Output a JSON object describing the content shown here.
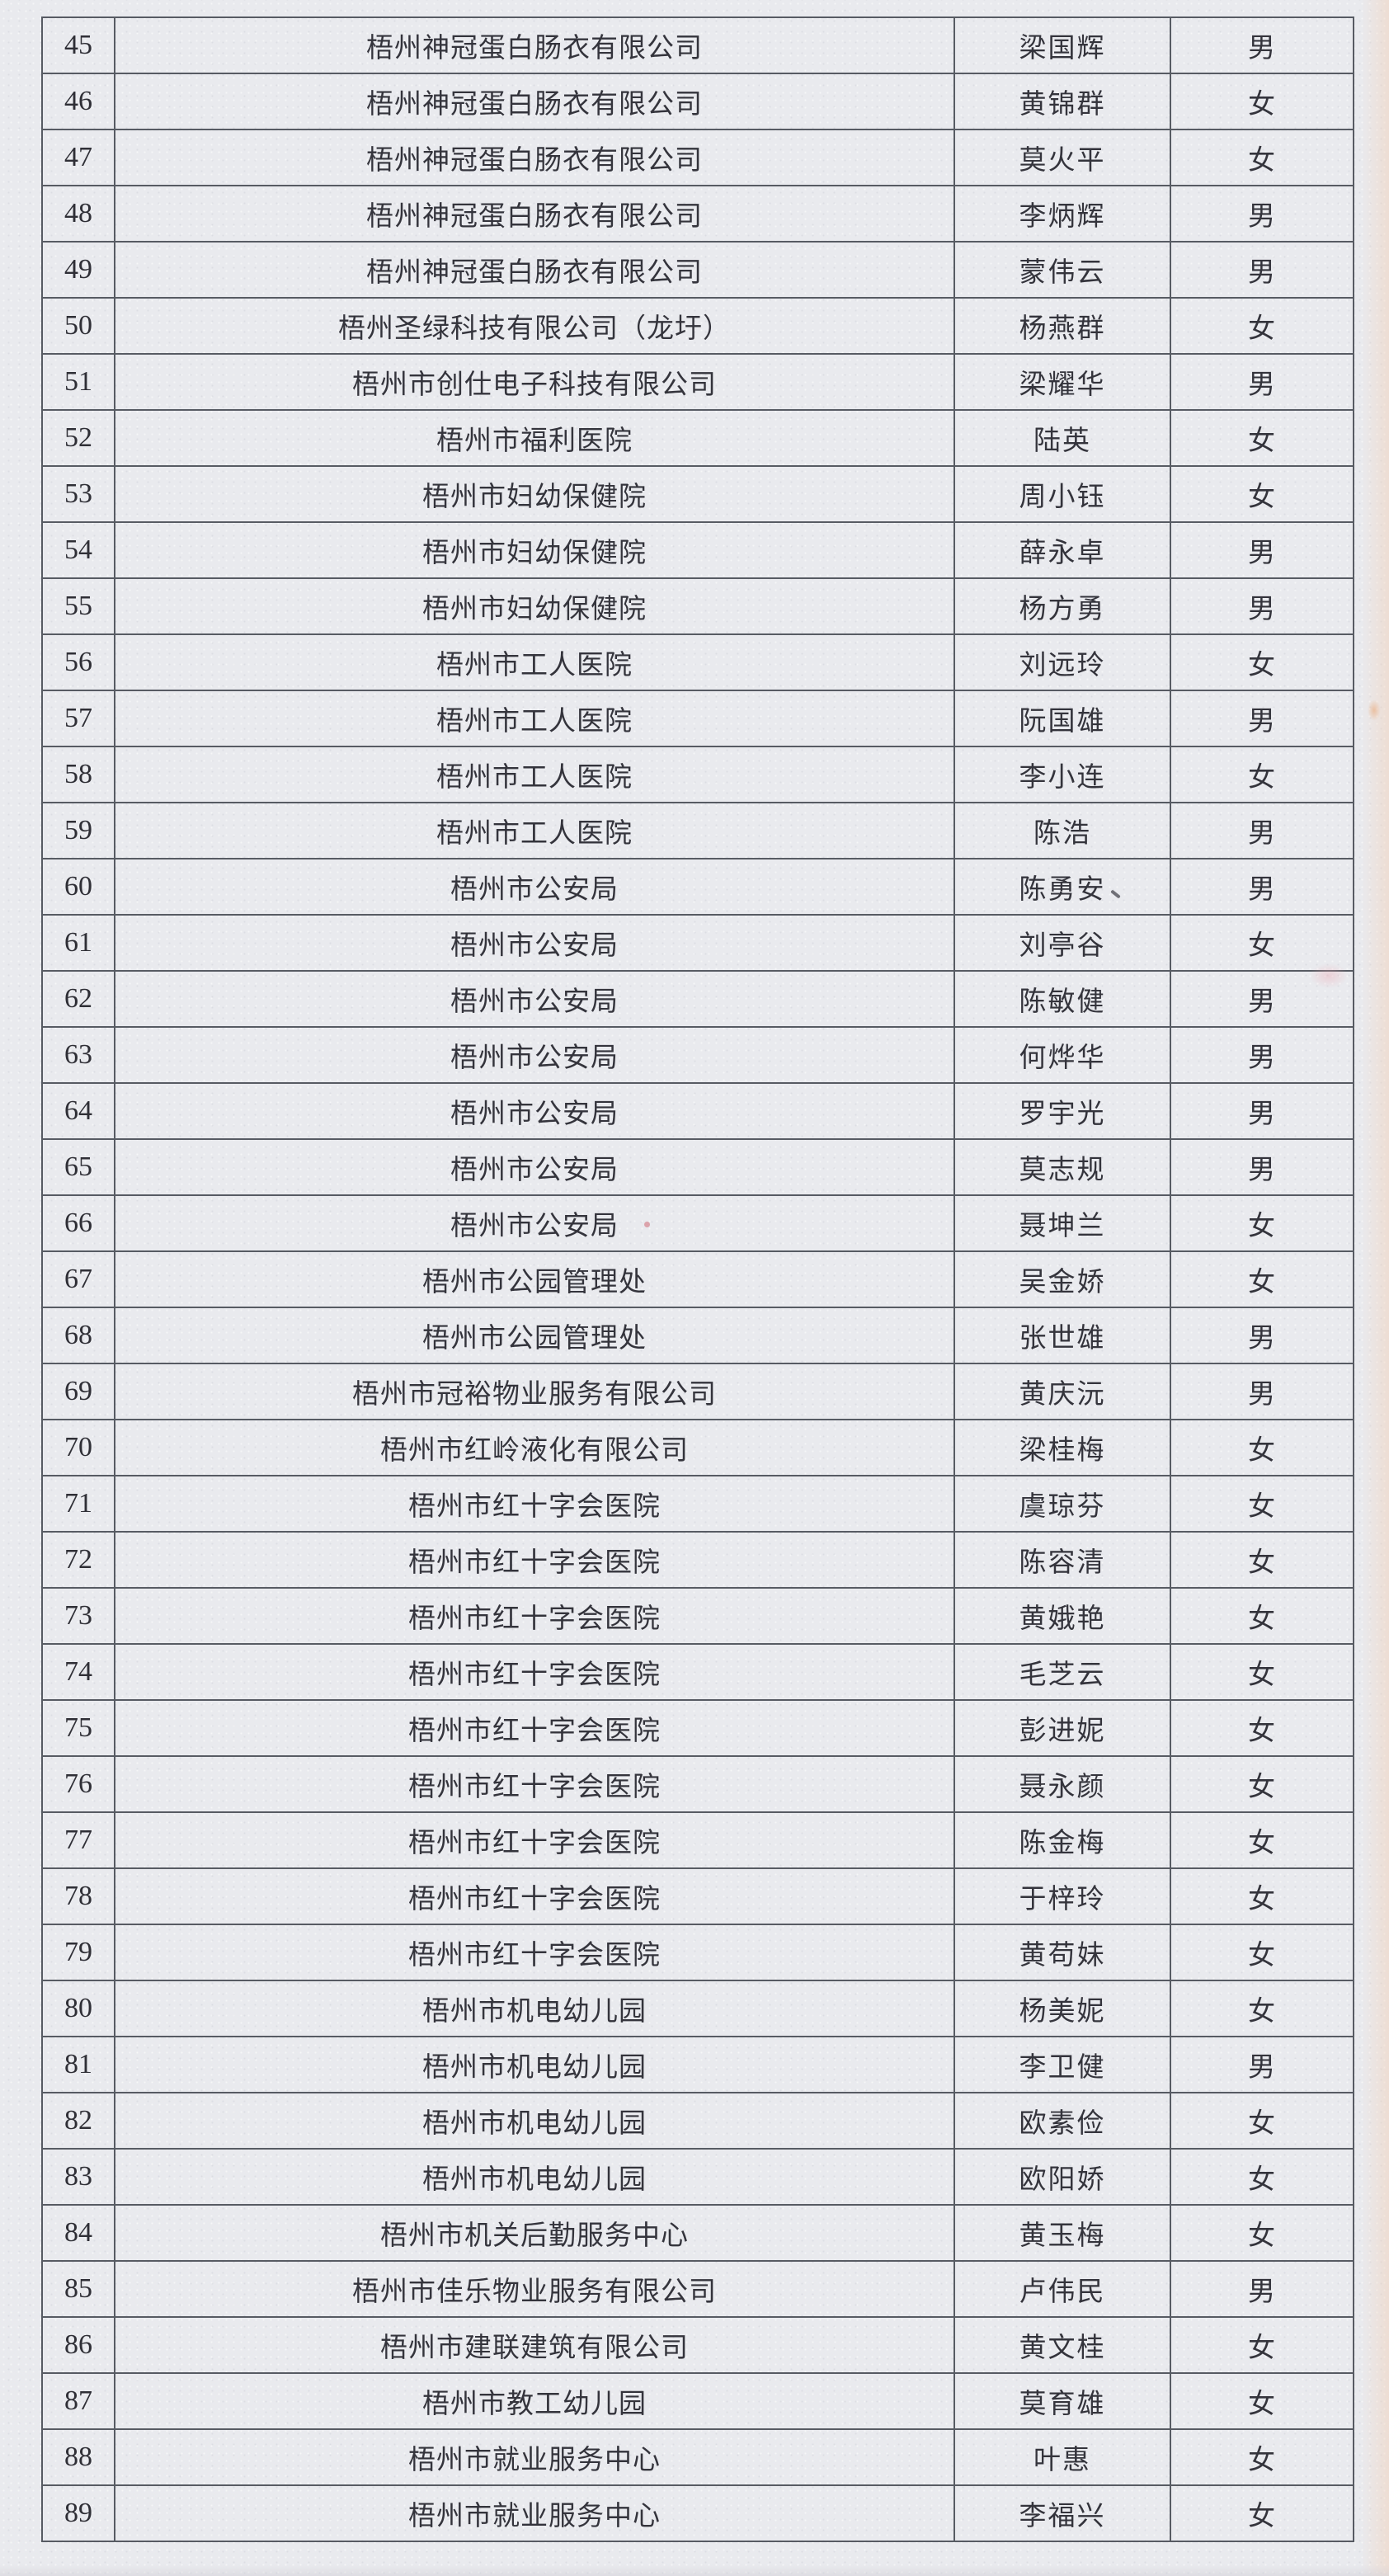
{
  "colors": {
    "paper": "#e9eaee",
    "line": "#575b63",
    "ink": "#34343c",
    "edge_tint": "#f3cdb2"
  },
  "table": {
    "rows": [
      {
        "no": "45",
        "org": "梧州神冠蛋白肠衣有限公司",
        "name": "梁国辉",
        "gender": "男"
      },
      {
        "no": "46",
        "org": "梧州神冠蛋白肠衣有限公司",
        "name": "黄锦群",
        "gender": "女"
      },
      {
        "no": "47",
        "org": "梧州神冠蛋白肠衣有限公司",
        "name": "莫火平",
        "gender": "女"
      },
      {
        "no": "48",
        "org": "梧州神冠蛋白肠衣有限公司",
        "name": "李炳辉",
        "gender": "男"
      },
      {
        "no": "49",
        "org": "梧州神冠蛋白肠衣有限公司",
        "name": "蒙伟云",
        "gender": "男"
      },
      {
        "no": "50",
        "org": "梧州圣绿科技有限公司（龙圩）",
        "name": "杨燕群",
        "gender": "女"
      },
      {
        "no": "51",
        "org": "梧州市创仕电子科技有限公司",
        "name": "梁耀华",
        "gender": "男"
      },
      {
        "no": "52",
        "org": "梧州市福利医院",
        "name": "陆英",
        "gender": "女"
      },
      {
        "no": "53",
        "org": "梧州市妇幼保健院",
        "name": "周小钰",
        "gender": "女"
      },
      {
        "no": "54",
        "org": "梧州市妇幼保健院",
        "name": "薛永卓",
        "gender": "男"
      },
      {
        "no": "55",
        "org": "梧州市妇幼保健院",
        "name": "杨方勇",
        "gender": "男"
      },
      {
        "no": "56",
        "org": "梧州市工人医院",
        "name": "刘远玲",
        "gender": "女"
      },
      {
        "no": "57",
        "org": "梧州市工人医院",
        "name": "阮国雄",
        "gender": "男"
      },
      {
        "no": "58",
        "org": "梧州市工人医院",
        "name": "李小连",
        "gender": "女"
      },
      {
        "no": "59",
        "org": "梧州市工人医院",
        "name": "陈浩",
        "gender": "男"
      },
      {
        "no": "60",
        "org": "梧州市公安局",
        "name": "陈勇安",
        "gender": "男"
      },
      {
        "no": "61",
        "org": "梧州市公安局",
        "name": "刘亭谷",
        "gender": "女"
      },
      {
        "no": "62",
        "org": "梧州市公安局",
        "name": "陈敏健",
        "gender": "男"
      },
      {
        "no": "63",
        "org": "梧州市公安局",
        "name": "何烨华",
        "gender": "男"
      },
      {
        "no": "64",
        "org": "梧州市公安局",
        "name": "罗宇光",
        "gender": "男"
      },
      {
        "no": "65",
        "org": "梧州市公安局",
        "name": "莫志规",
        "gender": "男"
      },
      {
        "no": "66",
        "org": "梧州市公安局",
        "name": "聂坤兰",
        "gender": "女"
      },
      {
        "no": "67",
        "org": "梧州市公园管理处",
        "name": "吴金娇",
        "gender": "女"
      },
      {
        "no": "68",
        "org": "梧州市公园管理处",
        "name": "张世雄",
        "gender": "男"
      },
      {
        "no": "69",
        "org": "梧州市冠裕物业服务有限公司",
        "name": "黄庆沅",
        "gender": "男"
      },
      {
        "no": "70",
        "org": "梧州市红岭液化有限公司",
        "name": "梁桂梅",
        "gender": "女"
      },
      {
        "no": "71",
        "org": "梧州市红十字会医院",
        "name": "虞琼芬",
        "gender": "女"
      },
      {
        "no": "72",
        "org": "梧州市红十字会医院",
        "name": "陈容清",
        "gender": "女"
      },
      {
        "no": "73",
        "org": "梧州市红十字会医院",
        "name": "黄娥艳",
        "gender": "女"
      },
      {
        "no": "74",
        "org": "梧州市红十字会医院",
        "name": "毛芝云",
        "gender": "女"
      },
      {
        "no": "75",
        "org": "梧州市红十字会医院",
        "name": "彭进妮",
        "gender": "女"
      },
      {
        "no": "76",
        "org": "梧州市红十字会医院",
        "name": "聂永颜",
        "gender": "女"
      },
      {
        "no": "77",
        "org": "梧州市红十字会医院",
        "name": "陈金梅",
        "gender": "女"
      },
      {
        "no": "78",
        "org": "梧州市红十字会医院",
        "name": "于梓玲",
        "gender": "女"
      },
      {
        "no": "79",
        "org": "梧州市红十字会医院",
        "name": "黄苟妹",
        "gender": "女"
      },
      {
        "no": "80",
        "org": "梧州市机电幼儿园",
        "name": "杨美妮",
        "gender": "女"
      },
      {
        "no": "81",
        "org": "梧州市机电幼儿园",
        "name": "李卫健",
        "gender": "男"
      },
      {
        "no": "82",
        "org": "梧州市机电幼儿园",
        "name": "欧素俭",
        "gender": "女"
      },
      {
        "no": "83",
        "org": "梧州市机电幼儿园",
        "name": "欧阳娇",
        "gender": "女"
      },
      {
        "no": "84",
        "org": "梧州市机关后勤服务中心",
        "name": "黄玉梅",
        "gender": "女"
      },
      {
        "no": "85",
        "org": "梧州市佳乐物业服务有限公司",
        "name": "卢伟民",
        "gender": "男"
      },
      {
        "no": "86",
        "org": "梧州市建联建筑有限公司",
        "name": "黄文桂",
        "gender": "女"
      },
      {
        "no": "87",
        "org": "梧州市教工幼儿园",
        "name": "莫育雄",
        "gender": "女"
      },
      {
        "no": "88",
        "org": "梧州市就业服务中心",
        "name": "叶惠",
        "gender": "女"
      },
      {
        "no": "89",
        "org": "梧州市就业服务中心",
        "name": "李福兴",
        "gender": "女"
      }
    ]
  }
}
